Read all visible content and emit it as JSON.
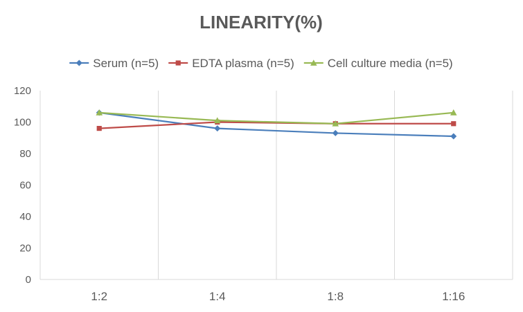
{
  "chart_data": {
    "type": "line",
    "title": "LINEARITY(%)",
    "xlabel": "",
    "ylabel": "",
    "categories": [
      "1:2",
      "1:4",
      "1:8",
      "1:16"
    ],
    "ylim": [
      0,
      120
    ],
    "yticks": [
      0,
      20,
      40,
      60,
      80,
      100,
      120
    ],
    "grid": "vertical",
    "legend_position": "top",
    "series": [
      {
        "name": "Serum (n=5)",
        "values": [
          106,
          96,
          93,
          91
        ],
        "color": "#4a7ebb",
        "marker": "diamond"
      },
      {
        "name": "EDTA plasma (n=5)",
        "values": [
          96,
          100,
          99,
          99
        ],
        "color": "#be4b48",
        "marker": "square"
      },
      {
        "name": "Cell culture media (n=5)",
        "values": [
          106,
          101,
          99,
          106
        ],
        "color": "#98b954",
        "marker": "triangle"
      }
    ]
  }
}
